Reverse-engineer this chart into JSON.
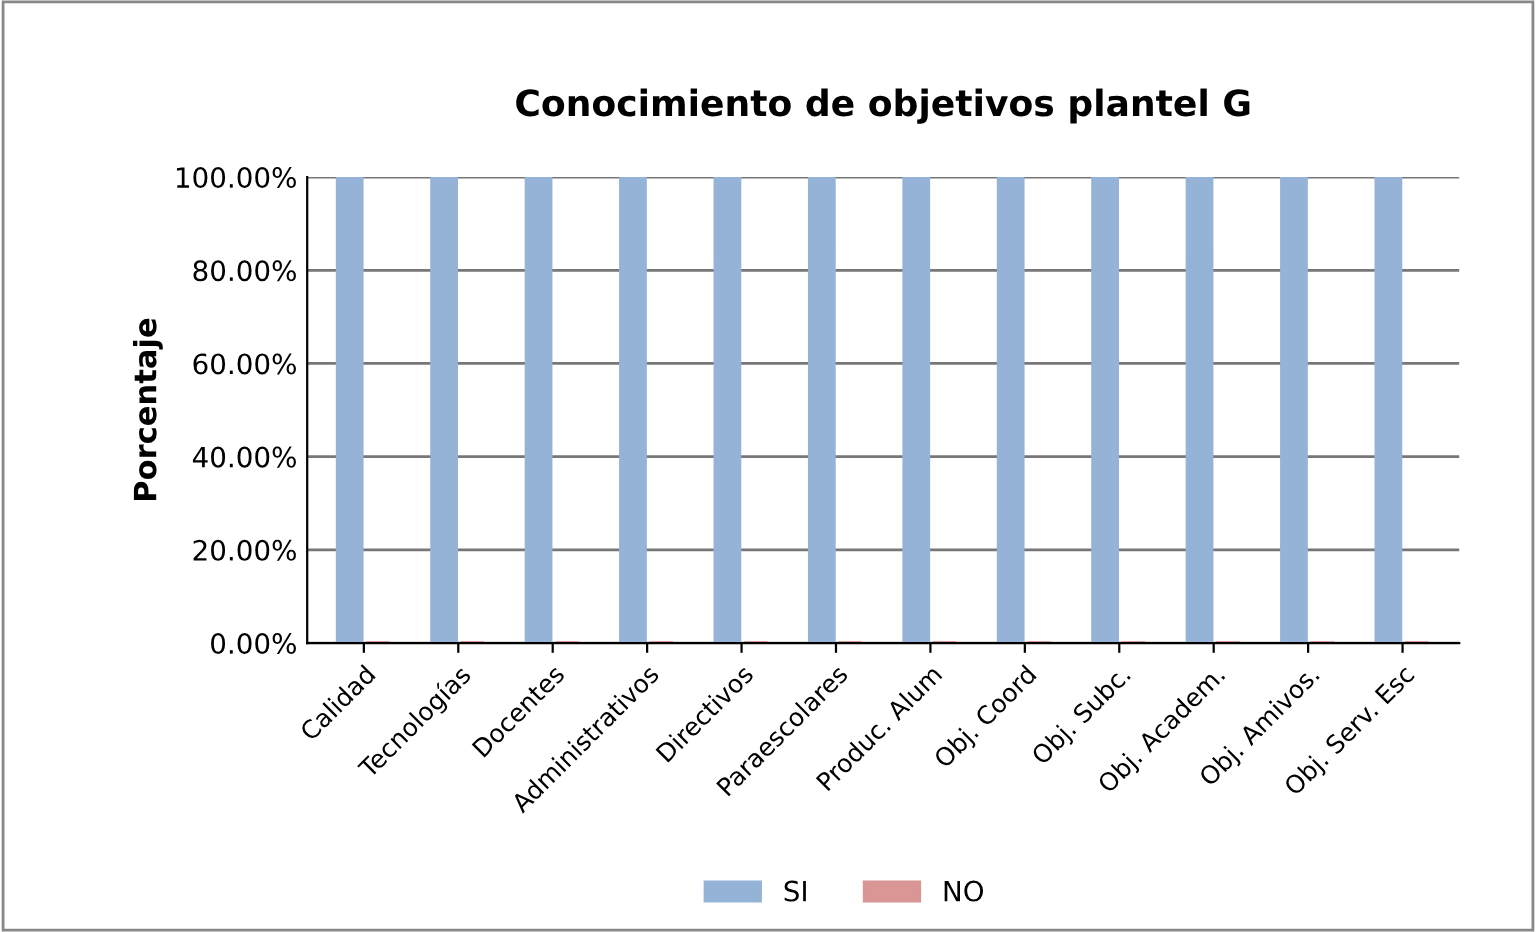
{
  "chart_data": {
    "type": "bar",
    "title": "Conocimiento de objetivos plantel G",
    "ylabel": "Porcentaje",
    "categories": [
      "Calidad",
      "Tecnologías",
      "Docentes",
      "Administrativos",
      "Directivos",
      "Paraescolares",
      "Produc. Alum",
      "Obj. Coord",
      "Obj. Subc.",
      "Obj. Academ.",
      "Obj. Amivos.",
      "Obj. Serv. Esc"
    ],
    "series": [
      {
        "name": "SI",
        "color": "#95b3d7",
        "values": [
          100,
          100,
          100,
          100,
          100,
          100,
          100,
          100,
          100,
          100,
          100,
          100
        ]
      },
      {
        "name": "NO",
        "color": "#d99694",
        "values": [
          0,
          0,
          0,
          0,
          0,
          0,
          0,
          0,
          0,
          0,
          0,
          0
        ]
      }
    ],
    "ylim": [
      0,
      100
    ],
    "yticks": [
      {
        "value": 0,
        "label": "0.00%"
      },
      {
        "value": 20,
        "label": "20.00%"
      },
      {
        "value": 40,
        "label": "40.00%"
      },
      {
        "value": 60,
        "label": "60.00%"
      },
      {
        "value": 80,
        "label": "80.00%"
      },
      {
        "value": 100,
        "label": "100.00%"
      }
    ],
    "grid": "y",
    "legend": "bottom"
  }
}
